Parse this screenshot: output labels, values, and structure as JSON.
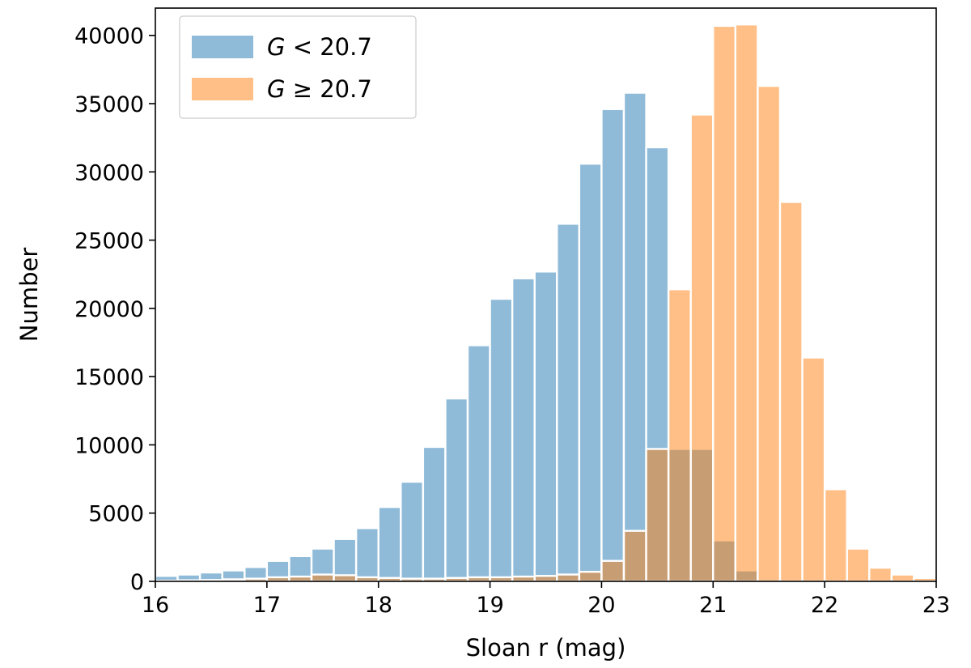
{
  "chart_data": {
    "type": "bar",
    "title": "",
    "xlabel": "Sloan r (mag)",
    "ylabel": "Number",
    "xlim": [
      16,
      23
    ],
    "ylim": [
      0,
      42000
    ],
    "xticks": [
      "16",
      "17",
      "18",
      "19",
      "20",
      "21",
      "22",
      "23"
    ],
    "yticks": [
      "0",
      "5000",
      "10000",
      "15000",
      "20000",
      "25000",
      "30000",
      "35000",
      "40000"
    ],
    "grid": false,
    "legend_position": "top-left",
    "bin_edges": [
      16.0,
      16.2,
      16.4,
      16.6,
      16.8,
      17.0,
      17.2,
      17.4,
      17.6,
      17.8,
      18.0,
      18.2,
      18.4,
      18.6,
      18.8,
      19.0,
      19.2,
      19.4,
      19.6,
      19.8,
      20.0,
      20.2,
      20.4,
      20.6,
      20.8,
      21.0,
      21.2,
      21.4,
      21.6,
      21.8,
      22.0,
      22.2,
      22.4,
      22.6,
      22.8,
      23.0
    ],
    "series": [
      {
        "name": "G < 20.7",
        "name_symbol": "G",
        "name_rest": " < 20.7",
        "color": "#1f77b4",
        "values": [
          400,
          500,
          650,
          800,
          1050,
          1500,
          1850,
          2400,
          3100,
          3900,
          5450,
          7300,
          9850,
          13400,
          17300,
          20700,
          22200,
          22700,
          26200,
          30600,
          34600,
          35800,
          31800,
          9700,
          9700,
          3000,
          800,
          150,
          0,
          0,
          0,
          0,
          0,
          0,
          0
        ]
      },
      {
        "name": "G ≥ 20.7",
        "name_symbol": "G",
        "name_rest": " ≥ 20.7",
        "color": "#ff7f0e",
        "values": [
          50,
          80,
          100,
          150,
          200,
          300,
          350,
          500,
          450,
          300,
          250,
          200,
          200,
          250,
          300,
          300,
          350,
          400,
          500,
          700,
          1500,
          3700,
          9700,
          21400,
          34200,
          40700,
          40800,
          36300,
          27800,
          16400,
          6750,
          2400,
          1000,
          500,
          250
        ]
      }
    ]
  }
}
